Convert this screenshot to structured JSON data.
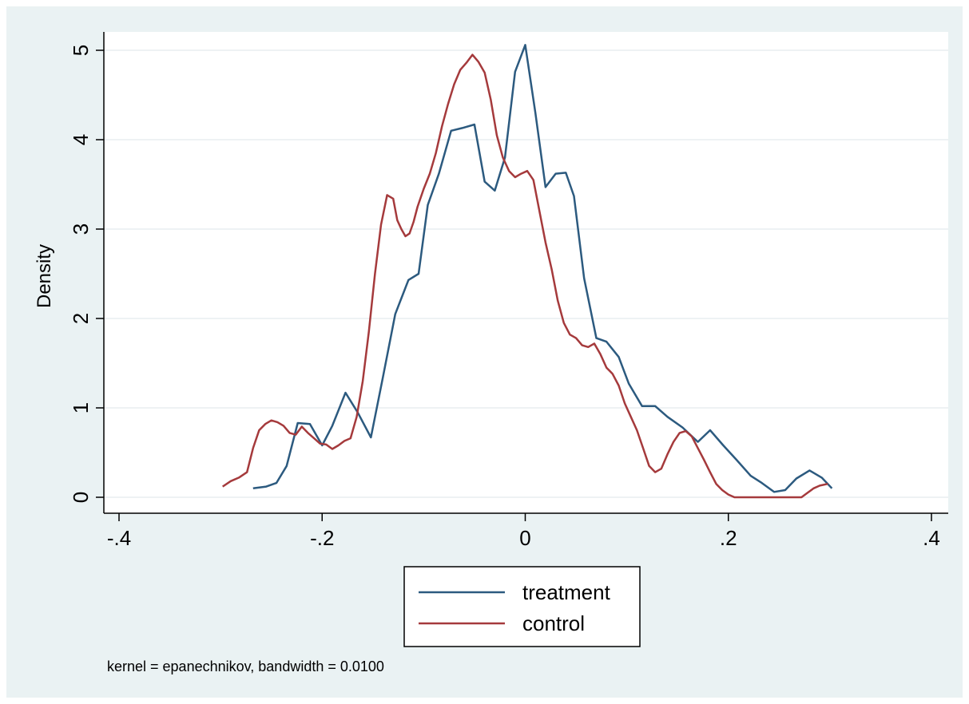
{
  "chart_data": {
    "type": "line",
    "title": "",
    "xlabel": "",
    "ylabel": "Density",
    "xlim": [
      -0.4,
      0.4
    ],
    "ylim": [
      0,
      5
    ],
    "x_ticks": [
      -0.4,
      -0.2,
      0,
      0.2,
      0.4
    ],
    "x_tick_labels": [
      "-.4",
      "-.2",
      "0",
      ".2",
      ".4"
    ],
    "y_ticks": [
      0,
      1,
      2,
      3,
      4,
      5
    ],
    "y_tick_labels": [
      "0",
      "1",
      "2",
      "3",
      "4",
      "5"
    ],
    "grid": "horizontal",
    "legend_position": "bottom",
    "note": "kernel = epanechnikov, bandwidth = 0.0100",
    "series": [
      {
        "name": "treatment",
        "color": "#2c5a7f",
        "x": [
          -0.268,
          -0.255,
          -0.245,
          -0.235,
          -0.224,
          -0.212,
          -0.2,
          -0.19,
          -0.177,
          -0.165,
          -0.152,
          -0.14,
          -0.128,
          -0.115,
          -0.105,
          -0.096,
          -0.085,
          -0.073,
          -0.062,
          -0.05,
          -0.04,
          -0.03,
          -0.02,
          -0.01,
          0.0,
          0.01,
          0.02,
          0.03,
          0.04,
          0.048,
          0.058,
          0.07,
          0.08,
          0.092,
          0.102,
          0.115,
          0.128,
          0.14,
          0.155,
          0.17,
          0.182,
          0.195,
          0.208,
          0.222,
          0.233,
          0.245,
          0.256,
          0.267,
          0.28,
          0.292,
          0.302
        ],
        "y": [
          0.1,
          0.12,
          0.16,
          0.35,
          0.83,
          0.82,
          0.58,
          0.8,
          1.17,
          0.95,
          0.67,
          1.35,
          2.05,
          2.43,
          2.5,
          3.27,
          3.62,
          4.1,
          4.13,
          4.17,
          3.53,
          3.43,
          3.8,
          4.76,
          5.06,
          4.3,
          3.47,
          3.62,
          3.63,
          3.37,
          2.45,
          1.78,
          1.74,
          1.57,
          1.27,
          1.02,
          1.02,
          0.9,
          0.78,
          0.62,
          0.75,
          0.58,
          0.42,
          0.24,
          0.16,
          0.06,
          0.08,
          0.21,
          0.3,
          0.22,
          0.1
        ]
      },
      {
        "name": "control",
        "color": "#a53a3c",
        "x": [
          -0.298,
          -0.29,
          -0.282,
          -0.274,
          -0.268,
          -0.262,
          -0.256,
          -0.25,
          -0.244,
          -0.238,
          -0.232,
          -0.226,
          -0.22,
          -0.214,
          -0.208,
          -0.202,
          -0.196,
          -0.19,
          -0.184,
          -0.178,
          -0.172,
          -0.166,
          -0.16,
          -0.154,
          -0.148,
          -0.142,
          -0.136,
          -0.13,
          -0.126,
          -0.122,
          -0.118,
          -0.114,
          -0.11,
          -0.106,
          -0.1,
          -0.094,
          -0.088,
          -0.082,
          -0.076,
          -0.07,
          -0.064,
          -0.058,
          -0.052,
          -0.046,
          -0.04,
          -0.034,
          -0.028,
          -0.022,
          -0.016,
          -0.01,
          -0.004,
          0.002,
          0.008,
          0.014,
          0.02,
          0.026,
          0.032,
          0.038,
          0.044,
          0.05,
          0.056,
          0.062,
          0.068,
          0.074,
          0.08,
          0.086,
          0.092,
          0.098,
          0.104,
          0.11,
          0.116,
          0.122,
          0.128,
          0.134,
          0.14,
          0.146,
          0.152,
          0.158,
          0.164,
          0.17,
          0.176,
          0.182,
          0.188,
          0.194,
          0.2,
          0.206,
          0.212,
          0.218,
          0.224,
          0.23,
          0.236,
          0.242,
          0.248,
          0.254,
          0.26,
          0.266,
          0.272,
          0.278,
          0.284,
          0.29,
          0.298
        ],
        "y": [
          0.12,
          0.18,
          0.22,
          0.28,
          0.55,
          0.75,
          0.82,
          0.86,
          0.84,
          0.8,
          0.72,
          0.7,
          0.79,
          0.72,
          0.66,
          0.6,
          0.59,
          0.54,
          0.58,
          0.63,
          0.66,
          0.9,
          1.3,
          1.85,
          2.5,
          3.05,
          3.38,
          3.34,
          3.1,
          3.0,
          2.92,
          2.95,
          3.08,
          3.25,
          3.45,
          3.62,
          3.85,
          4.15,
          4.4,
          4.62,
          4.78,
          4.86,
          4.95,
          4.87,
          4.75,
          4.45,
          4.05,
          3.8,
          3.65,
          3.58,
          3.62,
          3.65,
          3.55,
          3.2,
          2.85,
          2.55,
          2.2,
          1.95,
          1.82,
          1.78,
          1.7,
          1.68,
          1.72,
          1.6,
          1.45,
          1.38,
          1.25,
          1.05,
          0.9,
          0.75,
          0.55,
          0.35,
          0.28,
          0.32,
          0.48,
          0.62,
          0.72,
          0.74,
          0.68,
          0.55,
          0.42,
          0.28,
          0.15,
          0.08,
          0.03,
          0.0,
          0.0,
          0.0,
          0.0,
          0.0,
          0.0,
          0.0,
          0.0,
          0.0,
          0.0,
          0.0,
          0.0,
          0.05,
          0.1,
          0.13,
          0.15
        ]
      }
    ]
  }
}
